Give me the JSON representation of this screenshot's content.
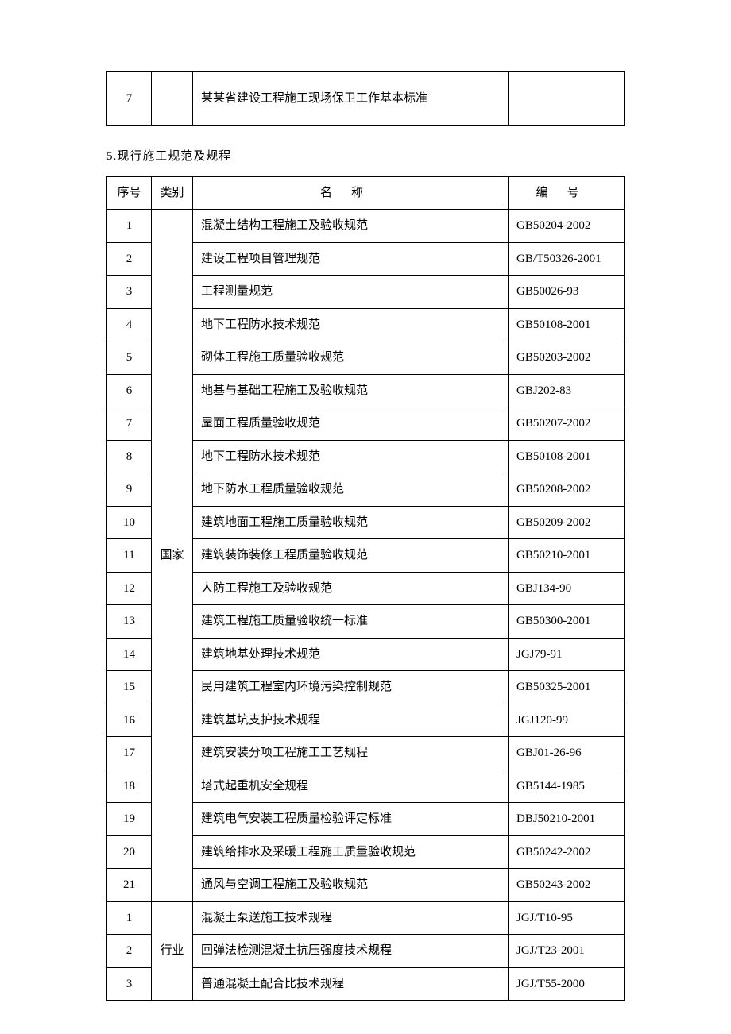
{
  "table1": {
    "rows": [
      {
        "seq": "7",
        "cat": "",
        "name": "某某省建设工程施工现场保卫工作基本标准",
        "code": ""
      }
    ]
  },
  "section5": {
    "heading": "5.现行施工规范及规程",
    "headers": {
      "seq": "序号",
      "cat": "类别",
      "name": "名称",
      "code": "编号"
    },
    "groupA": {
      "cat": "国家",
      "rows": [
        {
          "seq": "1",
          "name": "混凝土结构工程施工及验收规范",
          "code": "GB50204-2002"
        },
        {
          "seq": "2",
          "name": "建设工程项目管理规范",
          "code": "GB/T50326-2001"
        },
        {
          "seq": "3",
          "name": "工程测量规范",
          "code": "GB50026-93"
        },
        {
          "seq": "4",
          "name": "地下工程防水技术规范",
          "code": "GB50108-2001"
        },
        {
          "seq": "5",
          "name": "砌体工程施工质量验收规范",
          "code": "GB50203-2002"
        },
        {
          "seq": "6",
          "name": "地基与基础工程施工及验收规范",
          "code": "GBJ202-83"
        },
        {
          "seq": "7",
          "name": "屋面工程质量验收规范",
          "code": "GB50207-2002"
        },
        {
          "seq": "8",
          "name": "地下工程防水技术规范",
          "code": "GB50108-2001"
        },
        {
          "seq": "9",
          "name": "地下防水工程质量验收规范",
          "code": "GB50208-2002"
        },
        {
          "seq": "10",
          "name": "建筑地面工程施工质量验收规范",
          "code": "GB50209-2002"
        },
        {
          "seq": "11",
          "name": "建筑装饰装修工程质量验收规范",
          "code": "GB50210-2001"
        },
        {
          "seq": "12",
          "name": "人防工程施工及验收规范",
          "code": "GBJ134-90"
        },
        {
          "seq": "13",
          "name": "建筑工程施工质量验收统一标准",
          "code": "GB50300-2001"
        },
        {
          "seq": "14",
          "name": "建筑地基处理技术规范",
          "code": "JGJ79-91"
        },
        {
          "seq": "15",
          "name": "民用建筑工程室内环境污染控制规范",
          "code": "GB50325-2001"
        },
        {
          "seq": "16",
          "name": "建筑基坑支护技术规程",
          "code": "JGJ120-99"
        },
        {
          "seq": "17",
          "name": "建筑安装分项工程施工工艺规程",
          "code": "GBJ01-26-96"
        },
        {
          "seq": "18",
          "name": "塔式起重机安全规程",
          "code": "GB5144-1985"
        },
        {
          "seq": "19",
          "name": "建筑电气安装工程质量检验评定标准",
          "code": "DBJ50210-2001"
        },
        {
          "seq": "20",
          "name": "建筑给排水及采暖工程施工质量验收规范",
          "code": "GB50242-2002"
        },
        {
          "seq": "21",
          "name": "通风与空调工程施工及验收规范",
          "code": "GB50243-2002"
        }
      ]
    },
    "groupB": {
      "cat": "行业",
      "rows": [
        {
          "seq": "1",
          "name": "混凝土泵送施工技术规程",
          "code": "JGJ/T10-95"
        },
        {
          "seq": "2",
          "name": "回弹法检测混凝土抗压强度技术规程",
          "code": "JGJ/T23-2001"
        },
        {
          "seq": "3",
          "name": "普通混凝土配合比技术规程",
          "code": "JGJ/T55-2000"
        }
      ]
    }
  }
}
